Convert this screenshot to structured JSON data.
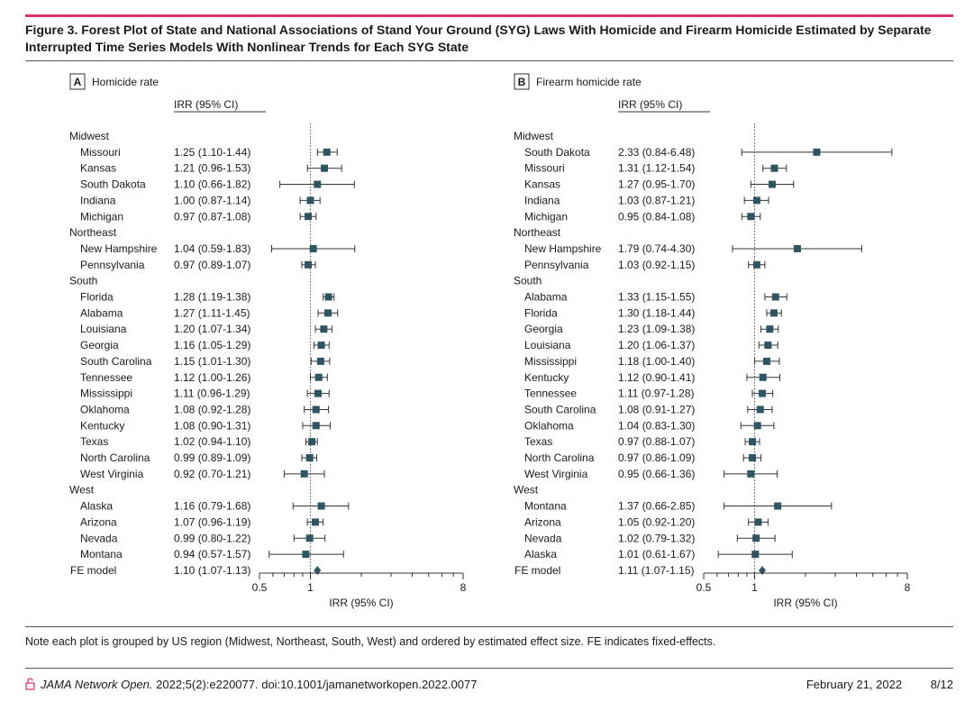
{
  "figure": {
    "title": "Figure 3. Forest Plot of State and National Associations of Stand Your Ground (SYG) Laws With Homicide and Firearm Homicide Estimated by Separate Interrupted Time Series Models With Nonlinear Trends for Each SYG State"
  },
  "colors": {
    "accent": "#d8336b",
    "marker": "#2e5561",
    "text": "#1a1a1a"
  },
  "chart_data": [
    {
      "type": "forest",
      "panel": "A",
      "title": "Homicide rate",
      "column_header": "IRR (95% CI)",
      "xlabel": "IRR (95% CI)",
      "x_scale": "log",
      "xlim": [
        0.5,
        8
      ],
      "ticks": [
        {
          "v": 0.5,
          "label": "0.5"
        },
        {
          "v": 1,
          "label": "1"
        },
        {
          "v": 8,
          "label": "8"
        }
      ],
      "minor_ticks": [
        0.6,
        0.7,
        0.8,
        0.9,
        2,
        3,
        4,
        5,
        6,
        7
      ],
      "reference_line": 1,
      "rows": [
        {
          "kind": "group",
          "label": "Midwest"
        },
        {
          "label": "Missouri",
          "ci_text": "1.25 (1.10-1.44)",
          "est": 1.25,
          "lo": 1.1,
          "hi": 1.44
        },
        {
          "label": "Kansas",
          "ci_text": "1.21 (0.96-1.53)",
          "est": 1.21,
          "lo": 0.96,
          "hi": 1.53
        },
        {
          "label": "South Dakota",
          "ci_text": "1.10 (0.66-1.82)",
          "est": 1.1,
          "lo": 0.66,
          "hi": 1.82
        },
        {
          "label": "Indiana",
          "ci_text": "1.00 (0.87-1.14)",
          "est": 1.0,
          "lo": 0.87,
          "hi": 1.14
        },
        {
          "label": "Michigan",
          "ci_text": "0.97 (0.87-1.08)",
          "est": 0.97,
          "lo": 0.87,
          "hi": 1.08
        },
        {
          "kind": "group",
          "label": "Northeast"
        },
        {
          "label": "New Hampshire",
          "ci_text": "1.04 (0.59-1.83)",
          "est": 1.04,
          "lo": 0.59,
          "hi": 1.83
        },
        {
          "label": "Pennsylvania",
          "ci_text": "0.97 (0.89-1.07)",
          "est": 0.97,
          "lo": 0.89,
          "hi": 1.07
        },
        {
          "kind": "group",
          "label": "South"
        },
        {
          "label": "Florida",
          "ci_text": "1.28 (1.19-1.38)",
          "est": 1.28,
          "lo": 1.19,
          "hi": 1.38
        },
        {
          "label": "Alabama",
          "ci_text": "1.27 (1.11-1.45)",
          "est": 1.27,
          "lo": 1.11,
          "hi": 1.45
        },
        {
          "label": "Louisiana",
          "ci_text": "1.20 (1.07-1.34)",
          "est": 1.2,
          "lo": 1.07,
          "hi": 1.34
        },
        {
          "label": "Georgia",
          "ci_text": "1.16 (1.05-1.29)",
          "est": 1.16,
          "lo": 1.05,
          "hi": 1.29
        },
        {
          "label": "South Carolina",
          "ci_text": "1.15 (1.01-1.30)",
          "est": 1.15,
          "lo": 1.01,
          "hi": 1.3
        },
        {
          "label": "Tennessee",
          "ci_text": "1.12 (1.00-1.26)",
          "est": 1.12,
          "lo": 1.0,
          "hi": 1.26
        },
        {
          "label": "Mississippi",
          "ci_text": "1.11 (0.96-1.29)",
          "est": 1.11,
          "lo": 0.96,
          "hi": 1.29
        },
        {
          "label": "Oklahoma",
          "ci_text": "1.08 (0.92-1.28)",
          "est": 1.08,
          "lo": 0.92,
          "hi": 1.28
        },
        {
          "label": "Kentucky",
          "ci_text": "1.08 (0.90-1.31)",
          "est": 1.08,
          "lo": 0.9,
          "hi": 1.31
        },
        {
          "label": "Texas",
          "ci_text": "1.02 (0.94-1.10)",
          "est": 1.02,
          "lo": 0.94,
          "hi": 1.1
        },
        {
          "label": "North Carolina",
          "ci_text": "0.99 (0.89-1.09)",
          "est": 0.99,
          "lo": 0.89,
          "hi": 1.09
        },
        {
          "label": "West Virginia",
          "ci_text": "0.92 (0.70-1.21)",
          "est": 0.92,
          "lo": 0.7,
          "hi": 1.21
        },
        {
          "kind": "group",
          "label": "West"
        },
        {
          "label": "Alaska",
          "ci_text": "1.16 (0.79-1.68)",
          "est": 1.16,
          "lo": 0.79,
          "hi": 1.68
        },
        {
          "label": "Arizona",
          "ci_text": "1.07 (0.96-1.19)",
          "est": 1.07,
          "lo": 0.96,
          "hi": 1.19
        },
        {
          "label": "Nevada",
          "ci_text": "0.99 (0.80-1.22)",
          "est": 0.99,
          "lo": 0.8,
          "hi": 1.22
        },
        {
          "label": "Montana",
          "ci_text": "0.94 (0.57-1.57)",
          "est": 0.94,
          "lo": 0.57,
          "hi": 1.57
        },
        {
          "kind": "summary",
          "label": "FE model",
          "ci_text": "1.10 (1.07-1.13)",
          "est": 1.1,
          "lo": 1.07,
          "hi": 1.13
        }
      ]
    },
    {
      "type": "forest",
      "panel": "B",
      "title": "Firearm homicide rate",
      "column_header": "IRR (95% CI)",
      "xlabel": "IRR (95% CI)",
      "x_scale": "log",
      "xlim": [
        0.5,
        8
      ],
      "ticks": [
        {
          "v": 0.5,
          "label": "0.5"
        },
        {
          "v": 1,
          "label": "1"
        },
        {
          "v": 8,
          "label": "8"
        }
      ],
      "minor_ticks": [
        0.6,
        0.7,
        0.8,
        0.9,
        2,
        3,
        4,
        5,
        6,
        7
      ],
      "reference_line": 1,
      "rows": [
        {
          "kind": "group",
          "label": "Midwest"
        },
        {
          "label": "South Dakota",
          "ci_text": "2.33 (0.84-6.48)",
          "est": 2.33,
          "lo": 0.84,
          "hi": 6.48
        },
        {
          "label": "Missouri",
          "ci_text": "1.31 (1.12-1.54)",
          "est": 1.31,
          "lo": 1.12,
          "hi": 1.54
        },
        {
          "label": "Kansas",
          "ci_text": "1.27 (0.95-1.70)",
          "est": 1.27,
          "lo": 0.95,
          "hi": 1.7
        },
        {
          "label": "Indiana",
          "ci_text": "1.03 (0.87-1.21)",
          "est": 1.03,
          "lo": 0.87,
          "hi": 1.21
        },
        {
          "label": "Michigan",
          "ci_text": "0.95 (0.84-1.08)",
          "est": 0.95,
          "lo": 0.84,
          "hi": 1.08
        },
        {
          "kind": "group",
          "label": "Northeast"
        },
        {
          "label": "New Hampshire",
          "ci_text": "1.79 (0.74-4.30)",
          "est": 1.79,
          "lo": 0.74,
          "hi": 4.3
        },
        {
          "label": "Pennsylvania",
          "ci_text": "1.03 (0.92-1.15)",
          "est": 1.03,
          "lo": 0.92,
          "hi": 1.15
        },
        {
          "kind": "group",
          "label": "South"
        },
        {
          "label": "Alabama",
          "ci_text": "1.33 (1.15-1.55)",
          "est": 1.33,
          "lo": 1.15,
          "hi": 1.55
        },
        {
          "label": "Florida",
          "ci_text": "1.30 (1.18-1.44)",
          "est": 1.3,
          "lo": 1.18,
          "hi": 1.44
        },
        {
          "label": "Georgia",
          "ci_text": "1.23 (1.09-1.38)",
          "est": 1.23,
          "lo": 1.09,
          "hi": 1.38
        },
        {
          "label": "Louisiana",
          "ci_text": "1.20 (1.06-1.37)",
          "est": 1.2,
          "lo": 1.06,
          "hi": 1.37
        },
        {
          "label": "Mississippi",
          "ci_text": "1.18 (1.00-1.40)",
          "est": 1.18,
          "lo": 1.0,
          "hi": 1.4
        },
        {
          "label": "Kentucky",
          "ci_text": "1.12 (0.90-1.41)",
          "est": 1.12,
          "lo": 0.9,
          "hi": 1.41
        },
        {
          "label": "Tennessee",
          "ci_text": "1.11 (0.97-1.28)",
          "est": 1.11,
          "lo": 0.97,
          "hi": 1.28
        },
        {
          "label": "South Carolina",
          "ci_text": "1.08 (0.91-1.27)",
          "est": 1.08,
          "lo": 0.91,
          "hi": 1.27
        },
        {
          "label": "Oklahoma",
          "ci_text": "1.04 (0.83-1.30)",
          "est": 1.04,
          "lo": 0.83,
          "hi": 1.3
        },
        {
          "label": "Texas",
          "ci_text": "0.97 (0.88-1.07)",
          "est": 0.97,
          "lo": 0.88,
          "hi": 1.07
        },
        {
          "label": "North Carolina",
          "ci_text": "0.97 (0.86-1.09)",
          "est": 0.97,
          "lo": 0.86,
          "hi": 1.09
        },
        {
          "label": "West Virginia",
          "ci_text": "0.95 (0.66-1.36)",
          "est": 0.95,
          "lo": 0.66,
          "hi": 1.36
        },
        {
          "kind": "group",
          "label": "West"
        },
        {
          "label": "Montana",
          "ci_text": "1.37 (0.66-2.85)",
          "est": 1.37,
          "lo": 0.66,
          "hi": 2.85
        },
        {
          "label": "Arizona",
          "ci_text": "1.05 (0.92-1.20)",
          "est": 1.05,
          "lo": 0.92,
          "hi": 1.2
        },
        {
          "label": "Nevada",
          "ci_text": "1.02 (0.79-1.32)",
          "est": 1.02,
          "lo": 0.79,
          "hi": 1.32
        },
        {
          "label": "Alaska",
          "ci_text": "1.01 (0.61-1.67)",
          "est": 1.01,
          "lo": 0.61,
          "hi": 1.67
        },
        {
          "kind": "summary",
          "label": "FE model",
          "ci_text": "1.11 (1.07-1.15)",
          "est": 1.11,
          "lo": 1.07,
          "hi": 1.15
        }
      ]
    }
  ],
  "note": "Note each plot is grouped by US region (Midwest, Northeast, South, West) and ordered by estimated effect size. FE indicates fixed-effects.",
  "footer": {
    "journal": "JAMA Network Open.",
    "citation": " 2022;5(2):e220077. doi:10.1001/jamanetworkopen.2022.0077",
    "date": "February 21, 2022",
    "page": "8/12",
    "icon": "open-access-lock-icon"
  }
}
